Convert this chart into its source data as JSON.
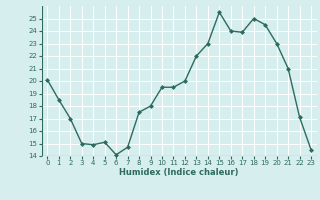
{
  "x": [
    0,
    1,
    2,
    3,
    4,
    5,
    6,
    7,
    8,
    9,
    10,
    11,
    12,
    13,
    14,
    15,
    16,
    17,
    18,
    19,
    20,
    21,
    22,
    23
  ],
  "y": [
    20.1,
    18.5,
    17.0,
    15.0,
    14.9,
    15.1,
    14.1,
    14.7,
    17.5,
    18.0,
    19.5,
    19.5,
    20.0,
    22.0,
    23.0,
    25.5,
    24.0,
    23.9,
    25.0,
    24.5,
    23.0,
    21.0,
    17.1,
    14.5
  ],
  "xlabel": "Humidex (Indice chaleur)",
  "ylim": [
    14,
    26
  ],
  "xlim": [
    -0.5,
    23.5
  ],
  "yticks": [
    14,
    15,
    16,
    17,
    18,
    19,
    20,
    21,
    22,
    23,
    24,
    25
  ],
  "xticks": [
    0,
    1,
    2,
    3,
    4,
    5,
    6,
    7,
    8,
    9,
    10,
    11,
    12,
    13,
    14,
    15,
    16,
    17,
    18,
    19,
    20,
    21,
    22,
    23
  ],
  "line_color": "#2d6b5e",
  "marker_color": "#2d6b5e",
  "bg_color": "#d6eeee",
  "grid_color": "#ffffff",
  "font_color": "#2d6b5e"
}
